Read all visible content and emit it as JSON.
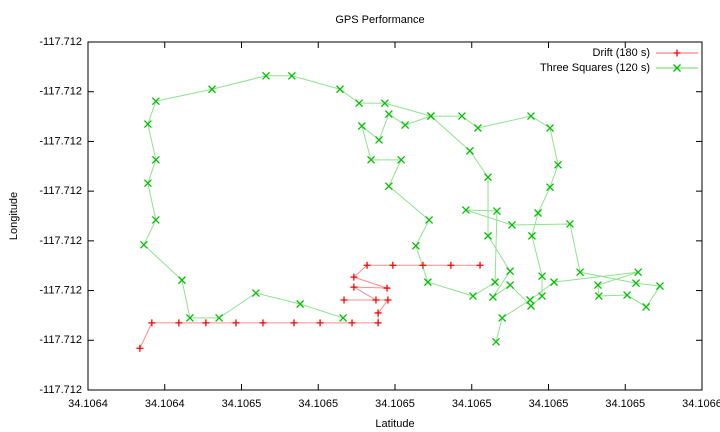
{
  "chart_data": {
    "type": "line",
    "title": "GPS Performance",
    "x_label": "Latitude",
    "y_label": "Longitude",
    "legend": "top-right",
    "xlim": [
      34.1064,
      34.1066
    ],
    "ylim": [
      -117.7124,
      -117.7117
    ],
    "xticks": [
      {
        "value": 34.1064,
        "label": "34.1064"
      },
      {
        "value": 34.106425,
        "label": "34.1064"
      },
      {
        "value": 34.10645,
        "label": "34.1065"
      },
      {
        "value": 34.106475,
        "label": "34.1065"
      },
      {
        "value": 34.1065,
        "label": "34.1065"
      },
      {
        "value": 34.106525,
        "label": "34.1065"
      },
      {
        "value": 34.10655,
        "label": "34.1065"
      },
      {
        "value": 34.106575,
        "label": "34.1065"
      },
      {
        "value": 34.1066,
        "label": "34.1066"
      }
    ],
    "yticks": [
      {
        "value": -117.7124,
        "label": "-117.712"
      },
      {
        "value": -117.7123,
        "label": "-117.712"
      },
      {
        "value": -117.7122,
        "label": "-117.712"
      },
      {
        "value": -117.7121,
        "label": "-117.712"
      },
      {
        "value": -117.712,
        "label": "-117.712"
      },
      {
        "value": -117.7119,
        "label": "-117.712"
      },
      {
        "value": -117.7118,
        "label": "-117.712"
      },
      {
        "value": -117.7117,
        "label": "-117.712"
      }
    ],
    "series": [
      {
        "name": "Drift (180 s)",
        "color": "#ff0000",
        "marker": "plus",
        "x": [
          34.1064169,
          34.1064208,
          34.1064296,
          34.1064384,
          34.1064482,
          34.106457,
          34.1064671,
          34.1064756,
          34.106486,
          34.1064945,
          34.1064945,
          34.1064977,
          34.1064834,
          34.1064938,
          34.1064866,
          34.1064974,
          34.1064866,
          34.1064909,
          34.1064993,
          34.1065091,
          34.1065182,
          34.1065277
        ],
        "values": [
          -117.712316,
          -117.712265,
          -117.712265,
          -117.712265,
          -117.712265,
          -117.712265,
          -117.712265,
          -117.712265,
          -117.712265,
          -117.712265,
          -117.712245,
          -117.712219,
          -117.712219,
          -117.712219,
          -117.712193,
          -117.712195,
          -117.712173,
          -117.712149,
          -117.712149,
          -117.712149,
          -117.712149,
          -117.712149
        ]
      },
      {
        "name": "Three Squares (120 s)",
        "color": "#00c000",
        "marker": "cross",
        "x": [
          34.1064831,
          34.1064691,
          34.1064547,
          34.1064427,
          34.1064332,
          34.1064306,
          34.1064182,
          34.1064221,
          34.1064195,
          34.1064221,
          34.1064195,
          34.1064221,
          34.1064404,
          34.106458,
          34.1064664,
          34.1064821,
          34.1064883,
          34.1064967,
          34.1065117,
          34.1065218,
          34.106527,
          34.1065443,
          34.1065505,
          34.1065531,
          34.1065505,
          34.1065466,
          34.1065446,
          34.1065479,
          34.1065479,
          34.1065443,
          34.1065375,
          34.1065319,
          34.1065375,
          34.1065303,
          34.1065303,
          34.1065244,
          34.1065117,
          34.1065033,
          34.106498,
          34.1064948,
          34.1064892,
          34.1064922,
          34.106502,
          34.106498,
          34.1065111,
          34.1065068,
          34.1065107,
          34.1065254,
          34.1065326,
          34.1065332,
          34.1065231,
          34.1065381,
          34.106557,
          34.1065603,
          34.1065785,
          34.1065863,
          34.1065818,
          34.1065756,
          34.1065664,
          34.1065661,
          34.1065792,
          34.1065518,
          34.106544,
          34.1065349,
          34.1065329
        ],
        "values": [
          -117.712255,
          -117.712227,
          -117.712205,
          -117.712255,
          -117.712255,
          -117.712179,
          -117.712108,
          -117.712058,
          -117.711984,
          -117.711937,
          -117.711865,
          -117.711819,
          -117.711795,
          -117.711768,
          -117.711768,
          -117.711795,
          -117.711823,
          -117.711823,
          -117.711849,
          -117.711849,
          -117.711873,
          -117.711849,
          -117.711873,
          -117.711947,
          -117.711992,
          -117.712044,
          -117.71209,
          -117.712171,
          -117.712211,
          -117.712231,
          -117.712189,
          -117.712213,
          -117.712161,
          -117.71209,
          -117.711972,
          -117.711919,
          -117.711849,
          -117.711867,
          -117.711845,
          -117.711897,
          -117.711869,
          -117.711937,
          -117.711937,
          -117.71199,
          -117.712058,
          -117.71211,
          -117.712183,
          -117.712211,
          -117.712183,
          -117.71204,
          -117.712038,
          -117.712068,
          -117.712066,
          -117.712163,
          -117.712185,
          -117.712191,
          -117.712233,
          -117.712209,
          -117.712211,
          -117.712189,
          -117.712163,
          -117.712183,
          -117.712219,
          -117.712255,
          -117.712303
        ]
      }
    ]
  }
}
